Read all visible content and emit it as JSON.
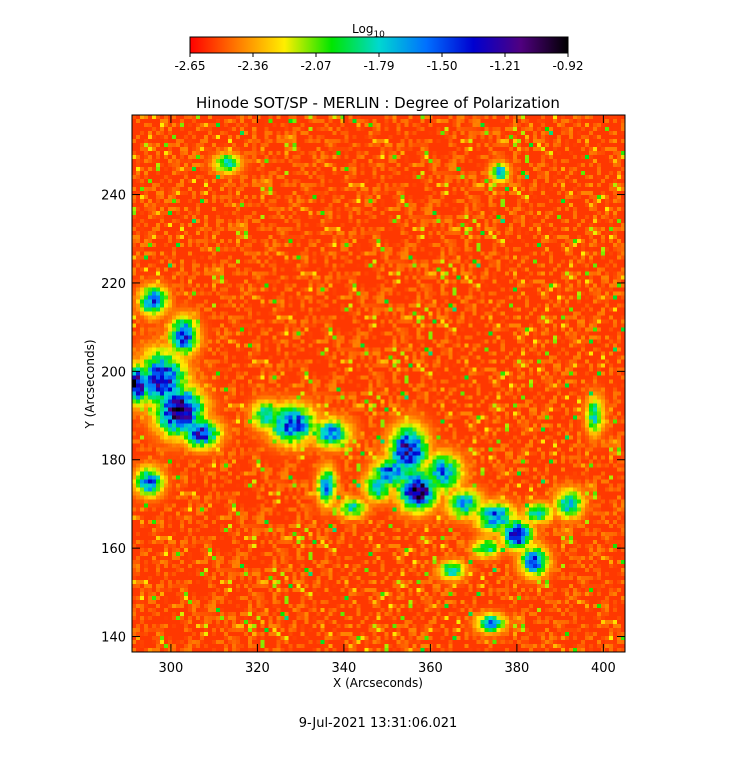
{
  "chart_data": {
    "type": "heatmap",
    "title": "Hinode SOT/SP - MERLIN : Degree of Polarization",
    "xlabel": "X (Arcseconds)",
    "ylabel": "Y (Arcseconds)",
    "xlim": [
      291,
      405
    ],
    "ylim": [
      136.5,
      258
    ],
    "x_ticks": [
      300,
      320,
      340,
      360,
      380,
      400
    ],
    "y_ticks": [
      140,
      160,
      180,
      200,
      220,
      240
    ],
    "colorbar": {
      "label_base": "Log",
      "label_sub": "10",
      "range": [
        -2.65,
        -0.92
      ],
      "tick_labels": [
        "-2.65",
        "-2.36",
        "-2.07",
        "-1.79",
        "-1.50",
        "-1.21",
        "-0.92"
      ],
      "colors": [
        "#ff0000",
        "#ff7a00",
        "#ffee00",
        "#00e600",
        "#00d8d0",
        "#0070ff",
        "#0000d0",
        "#500080",
        "#000000"
      ]
    },
    "background_level": -2.55,
    "regions": [
      {
        "x": 302,
        "y": 191,
        "rx": 5,
        "ry": 5,
        "peak": -1.05
      },
      {
        "x": 298,
        "y": 198,
        "rx": 5,
        "ry": 6,
        "peak": -1.3
      },
      {
        "x": 292,
        "y": 197,
        "rx": 3,
        "ry": 4,
        "peak": -1.15
      },
      {
        "x": 307,
        "y": 186,
        "rx": 4,
        "ry": 3,
        "peak": -1.35
      },
      {
        "x": 303,
        "y": 208,
        "rx": 3,
        "ry": 4,
        "peak": -1.4
      },
      {
        "x": 296,
        "y": 216,
        "rx": 3,
        "ry": 3,
        "peak": -1.5
      },
      {
        "x": 295,
        "y": 175,
        "rx": 3,
        "ry": 3,
        "peak": -1.5
      },
      {
        "x": 328,
        "y": 188,
        "rx": 5,
        "ry": 4,
        "peak": -1.4
      },
      {
        "x": 337,
        "y": 186,
        "rx": 4,
        "ry": 3,
        "peak": -1.6
      },
      {
        "x": 336,
        "y": 174,
        "rx": 2,
        "ry": 4,
        "peak": -1.6
      },
      {
        "x": 355,
        "y": 182,
        "rx": 4,
        "ry": 5,
        "peak": -1.2
      },
      {
        "x": 357,
        "y": 173,
        "rx": 4,
        "ry": 4,
        "peak": -1.0
      },
      {
        "x": 351,
        "y": 177,
        "rx": 4,
        "ry": 3,
        "peak": -1.45
      },
      {
        "x": 348,
        "y": 174,
        "rx": 3,
        "ry": 3,
        "peak": -1.6
      },
      {
        "x": 363,
        "y": 177,
        "rx": 4,
        "ry": 4,
        "peak": -1.6
      },
      {
        "x": 368,
        "y": 170,
        "rx": 4,
        "ry": 3,
        "peak": -1.7
      },
      {
        "x": 375,
        "y": 167,
        "rx": 4,
        "ry": 3,
        "peak": -1.5
      },
      {
        "x": 380,
        "y": 163,
        "rx": 3,
        "ry": 3,
        "peak": -1.1
      },
      {
        "x": 384,
        "y": 157,
        "rx": 3,
        "ry": 3,
        "peak": -1.4
      },
      {
        "x": 385,
        "y": 168,
        "rx": 3,
        "ry": 2,
        "peak": -1.7
      },
      {
        "x": 373,
        "y": 160,
        "rx": 3,
        "ry": 2,
        "peak": -1.8
      },
      {
        "x": 365,
        "y": 155,
        "rx": 3,
        "ry": 2,
        "peak": -1.8
      },
      {
        "x": 374,
        "y": 143,
        "rx": 3,
        "ry": 2,
        "peak": -1.6
      },
      {
        "x": 392,
        "y": 170,
        "rx": 3,
        "ry": 3,
        "peak": -1.7
      },
      {
        "x": 398,
        "y": 190,
        "rx": 2,
        "ry": 4,
        "peak": -1.8
      },
      {
        "x": 376,
        "y": 245,
        "rx": 2,
        "ry": 2,
        "peak": -1.7
      },
      {
        "x": 313,
        "y": 247,
        "rx": 3,
        "ry": 2,
        "peak": -1.8
      },
      {
        "x": 322,
        "y": 190,
        "rx": 3,
        "ry": 3,
        "peak": -1.7
      },
      {
        "x": 342,
        "y": 169,
        "rx": 3,
        "ry": 2,
        "peak": -1.8
      }
    ]
  },
  "timestamp": "9-Jul-2021 13:31:06.021"
}
